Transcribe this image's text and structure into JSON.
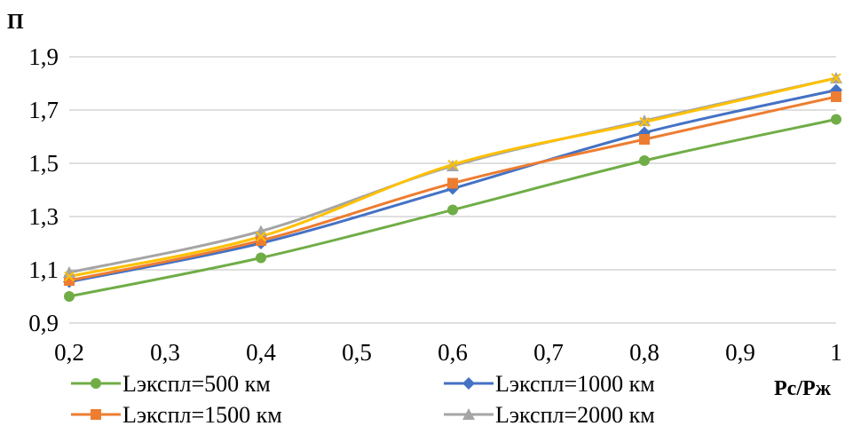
{
  "chart_data": {
    "type": "line",
    "x": [
      0.2,
      0.4,
      0.6,
      0.8,
      1.0
    ],
    "x_tick_labels": [
      "0,2",
      "0,3",
      "0,4",
      "0,5",
      "0,6",
      "0,7",
      "0,8",
      "0,9",
      "1"
    ],
    "x_ticks": [
      0.2,
      0.3,
      0.4,
      0.5,
      0.6,
      0.7,
      0.8,
      0.9,
      1.0
    ],
    "y_tick_labels": [
      "0,9",
      "1,1",
      "1,3",
      "1,5",
      "1,7",
      "1,9"
    ],
    "y_ticks": [
      0.9,
      1.1,
      1.3,
      1.5,
      1.7,
      1.9
    ],
    "xlim": [
      0.2,
      1.0
    ],
    "ylim": [
      0.9,
      1.9
    ],
    "xlabel": "Рс/Рж",
    "ylabel": "П",
    "grid": "horizontal",
    "legend_placement": "bottom",
    "series": [
      {
        "name": "Lэкспл=500 км",
        "color": "#70ad47",
        "marker": "circle",
        "values": [
          1.0,
          1.145,
          1.325,
          1.51,
          1.665
        ]
      },
      {
        "name": "Lэкспл=1000 км",
        "color": "#4472c4",
        "marker": "diamond",
        "values": [
          1.055,
          1.2,
          1.405,
          1.615,
          1.775
        ]
      },
      {
        "name": "Lэкспл=1500 км",
        "color": "#ed7d31",
        "marker": "square",
        "values": [
          1.06,
          1.21,
          1.425,
          1.59,
          1.75
        ]
      },
      {
        "name": "Lэкспл=2000 км",
        "color": "#a5a5a5",
        "marker": "triangle",
        "values": [
          1.09,
          1.245,
          1.49,
          1.66,
          1.82
        ]
      },
      {
        "name": "",
        "color": "#ffc000",
        "marker": "x",
        "values": [
          1.075,
          1.225,
          1.495,
          1.655,
          1.82
        ]
      }
    ]
  }
}
